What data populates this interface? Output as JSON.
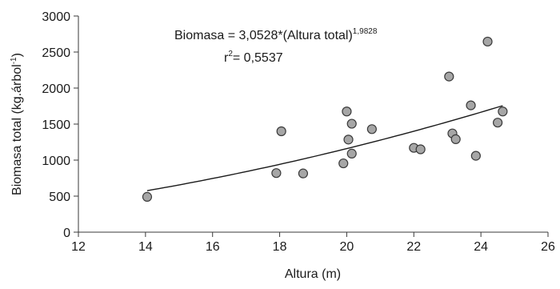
{
  "chart_data": {
    "type": "scatter",
    "title": "",
    "xlabel": "Altura (m)",
    "ylabel": {
      "main": "Biomasa total (kg.árbol",
      "superscript": "-1",
      "close": ")"
    },
    "xlim": [
      12,
      26
    ],
    "ylim": [
      0,
      3000
    ],
    "x_ticks": [
      12,
      14,
      16,
      18,
      20,
      22,
      24,
      26
    ],
    "y_ticks": [
      0,
      500,
      1000,
      1500,
      2000,
      2500,
      3000
    ],
    "grid": false,
    "legend": "none",
    "points": [
      {
        "x": 14.05,
        "y": 490
      },
      {
        "x": 17.9,
        "y": 820
      },
      {
        "x": 18.05,
        "y": 1400
      },
      {
        "x": 18.7,
        "y": 815
      },
      {
        "x": 19.9,
        "y": 955
      },
      {
        "x": 20.0,
        "y": 1675
      },
      {
        "x": 20.05,
        "y": 1285
      },
      {
        "x": 20.15,
        "y": 1505
      },
      {
        "x": 20.15,
        "y": 1090
      },
      {
        "x": 20.75,
        "y": 1430
      },
      {
        "x": 22.0,
        "y": 1170
      },
      {
        "x": 22.2,
        "y": 1150
      },
      {
        "x": 23.05,
        "y": 2160
      },
      {
        "x": 23.15,
        "y": 1370
      },
      {
        "x": 23.25,
        "y": 1290
      },
      {
        "x": 23.7,
        "y": 1760
      },
      {
        "x": 23.85,
        "y": 1060
      },
      {
        "x": 24.2,
        "y": 2645
      },
      {
        "x": 24.5,
        "y": 1520
      },
      {
        "x": 24.65,
        "y": 1675
      }
    ],
    "fit": {
      "type": "power",
      "a": 3.0528,
      "b": 1.9828,
      "x_range": [
        14.05,
        24.65
      ]
    },
    "annotations": {
      "equation_main": "Biomasa = 3,0528*(Altura total)",
      "equation_exponent": "1,9828",
      "r2_prefix": "r",
      "r2_exponent": "2",
      "r2_value": "= 0,5537"
    },
    "colors": {
      "marker_fill": "#a6a6a6",
      "marker_stroke": "#3a3a3a",
      "line": "#1a1a1a",
      "axis": "#3a3a3a"
    }
  }
}
